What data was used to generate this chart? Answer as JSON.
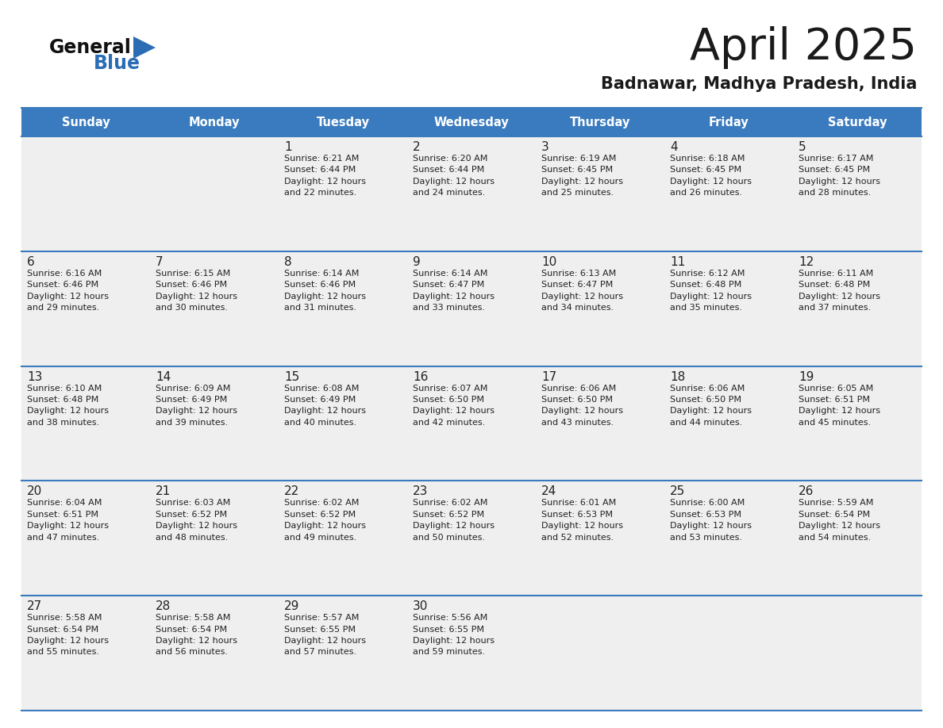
{
  "title": "April 2025",
  "subtitle": "Badnawar, Madhya Pradesh, India",
  "days_of_week": [
    "Sunday",
    "Monday",
    "Tuesday",
    "Wednesday",
    "Thursday",
    "Friday",
    "Saturday"
  ],
  "header_bg_color": "#3a7bbf",
  "header_text_color": "#ffffff",
  "cell_bg_color": "#efefef",
  "border_color": "#3a7bbf",
  "day_number_color": "#222222",
  "cell_text_color": "#222222",
  "title_color": "#1a1a1a",
  "subtitle_color": "#1a1a1a",
  "logo_triangle_color": "#2a6db5",
  "logo_text_color_general": "#1a1a1a",
  "logo_text_color_blue": "#2a6db5",
  "weeks": [
    [
      {
        "day": null,
        "info": null
      },
      {
        "day": null,
        "info": null
      },
      {
        "day": 1,
        "sunrise": "Sunrise: 6:21 AM",
        "sunset": "Sunset: 6:44 PM",
        "daylight": "Daylight: 12 hours",
        "daylight2": "and 22 minutes."
      },
      {
        "day": 2,
        "sunrise": "Sunrise: 6:20 AM",
        "sunset": "Sunset: 6:44 PM",
        "daylight": "Daylight: 12 hours",
        "daylight2": "and 24 minutes."
      },
      {
        "day": 3,
        "sunrise": "Sunrise: 6:19 AM",
        "sunset": "Sunset: 6:45 PM",
        "daylight": "Daylight: 12 hours",
        "daylight2": "and 25 minutes."
      },
      {
        "day": 4,
        "sunrise": "Sunrise: 6:18 AM",
        "sunset": "Sunset: 6:45 PM",
        "daylight": "Daylight: 12 hours",
        "daylight2": "and 26 minutes."
      },
      {
        "day": 5,
        "sunrise": "Sunrise: 6:17 AM",
        "sunset": "Sunset: 6:45 PM",
        "daylight": "Daylight: 12 hours",
        "daylight2": "and 28 minutes."
      }
    ],
    [
      {
        "day": 6,
        "sunrise": "Sunrise: 6:16 AM",
        "sunset": "Sunset: 6:46 PM",
        "daylight": "Daylight: 12 hours",
        "daylight2": "and 29 minutes."
      },
      {
        "day": 7,
        "sunrise": "Sunrise: 6:15 AM",
        "sunset": "Sunset: 6:46 PM",
        "daylight": "Daylight: 12 hours",
        "daylight2": "and 30 minutes."
      },
      {
        "day": 8,
        "sunrise": "Sunrise: 6:14 AM",
        "sunset": "Sunset: 6:46 PM",
        "daylight": "Daylight: 12 hours",
        "daylight2": "and 31 minutes."
      },
      {
        "day": 9,
        "sunrise": "Sunrise: 6:14 AM",
        "sunset": "Sunset: 6:47 PM",
        "daylight": "Daylight: 12 hours",
        "daylight2": "and 33 minutes."
      },
      {
        "day": 10,
        "sunrise": "Sunrise: 6:13 AM",
        "sunset": "Sunset: 6:47 PM",
        "daylight": "Daylight: 12 hours",
        "daylight2": "and 34 minutes."
      },
      {
        "day": 11,
        "sunrise": "Sunrise: 6:12 AM",
        "sunset": "Sunset: 6:48 PM",
        "daylight": "Daylight: 12 hours",
        "daylight2": "and 35 minutes."
      },
      {
        "day": 12,
        "sunrise": "Sunrise: 6:11 AM",
        "sunset": "Sunset: 6:48 PM",
        "daylight": "Daylight: 12 hours",
        "daylight2": "and 37 minutes."
      }
    ],
    [
      {
        "day": 13,
        "sunrise": "Sunrise: 6:10 AM",
        "sunset": "Sunset: 6:48 PM",
        "daylight": "Daylight: 12 hours",
        "daylight2": "and 38 minutes."
      },
      {
        "day": 14,
        "sunrise": "Sunrise: 6:09 AM",
        "sunset": "Sunset: 6:49 PM",
        "daylight": "Daylight: 12 hours",
        "daylight2": "and 39 minutes."
      },
      {
        "day": 15,
        "sunrise": "Sunrise: 6:08 AM",
        "sunset": "Sunset: 6:49 PM",
        "daylight": "Daylight: 12 hours",
        "daylight2": "and 40 minutes."
      },
      {
        "day": 16,
        "sunrise": "Sunrise: 6:07 AM",
        "sunset": "Sunset: 6:50 PM",
        "daylight": "Daylight: 12 hours",
        "daylight2": "and 42 minutes."
      },
      {
        "day": 17,
        "sunrise": "Sunrise: 6:06 AM",
        "sunset": "Sunset: 6:50 PM",
        "daylight": "Daylight: 12 hours",
        "daylight2": "and 43 minutes."
      },
      {
        "day": 18,
        "sunrise": "Sunrise: 6:06 AM",
        "sunset": "Sunset: 6:50 PM",
        "daylight": "Daylight: 12 hours",
        "daylight2": "and 44 minutes."
      },
      {
        "day": 19,
        "sunrise": "Sunrise: 6:05 AM",
        "sunset": "Sunset: 6:51 PM",
        "daylight": "Daylight: 12 hours",
        "daylight2": "and 45 minutes."
      }
    ],
    [
      {
        "day": 20,
        "sunrise": "Sunrise: 6:04 AM",
        "sunset": "Sunset: 6:51 PM",
        "daylight": "Daylight: 12 hours",
        "daylight2": "and 47 minutes."
      },
      {
        "day": 21,
        "sunrise": "Sunrise: 6:03 AM",
        "sunset": "Sunset: 6:52 PM",
        "daylight": "Daylight: 12 hours",
        "daylight2": "and 48 minutes."
      },
      {
        "day": 22,
        "sunrise": "Sunrise: 6:02 AM",
        "sunset": "Sunset: 6:52 PM",
        "daylight": "Daylight: 12 hours",
        "daylight2": "and 49 minutes."
      },
      {
        "day": 23,
        "sunrise": "Sunrise: 6:02 AM",
        "sunset": "Sunset: 6:52 PM",
        "daylight": "Daylight: 12 hours",
        "daylight2": "and 50 minutes."
      },
      {
        "day": 24,
        "sunrise": "Sunrise: 6:01 AM",
        "sunset": "Sunset: 6:53 PM",
        "daylight": "Daylight: 12 hours",
        "daylight2": "and 52 minutes."
      },
      {
        "day": 25,
        "sunrise": "Sunrise: 6:00 AM",
        "sunset": "Sunset: 6:53 PM",
        "daylight": "Daylight: 12 hours",
        "daylight2": "and 53 minutes."
      },
      {
        "day": 26,
        "sunrise": "Sunrise: 5:59 AM",
        "sunset": "Sunset: 6:54 PM",
        "daylight": "Daylight: 12 hours",
        "daylight2": "and 54 minutes."
      }
    ],
    [
      {
        "day": 27,
        "sunrise": "Sunrise: 5:58 AM",
        "sunset": "Sunset: 6:54 PM",
        "daylight": "Daylight: 12 hours",
        "daylight2": "and 55 minutes."
      },
      {
        "day": 28,
        "sunrise": "Sunrise: 5:58 AM",
        "sunset": "Sunset: 6:54 PM",
        "daylight": "Daylight: 12 hours",
        "daylight2": "and 56 minutes."
      },
      {
        "day": 29,
        "sunrise": "Sunrise: 5:57 AM",
        "sunset": "Sunset: 6:55 PM",
        "daylight": "Daylight: 12 hours",
        "daylight2": "and 57 minutes."
      },
      {
        "day": 30,
        "sunrise": "Sunrise: 5:56 AM",
        "sunset": "Sunset: 6:55 PM",
        "daylight": "Daylight: 12 hours",
        "daylight2": "and 59 minutes."
      },
      {
        "day": null,
        "info": null
      },
      {
        "day": null,
        "info": null
      },
      {
        "day": null,
        "info": null
      }
    ]
  ],
  "figsize": [
    11.88,
    9.18
  ],
  "dpi": 100
}
